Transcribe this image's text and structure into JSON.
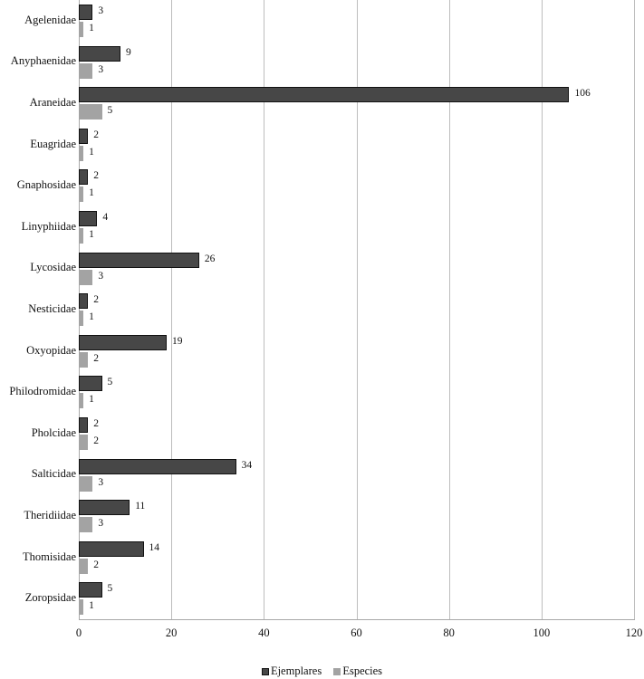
{
  "chart_data": {
    "type": "bar",
    "orientation": "horizontal",
    "title": "",
    "xlabel": "",
    "ylabel": "",
    "xlim": [
      0,
      120
    ],
    "x_ticks": [
      0,
      20,
      40,
      60,
      80,
      100,
      120
    ],
    "grid": "vertical gridlines",
    "legend_position": "bottom",
    "categories": [
      "Agelenidae",
      "Anyphaenidae",
      "Araneidae",
      "Euagridae",
      "Gnaphosidae",
      "Linyphiidae",
      "Lycosidae",
      "Nesticidae",
      "Oxyopidae",
      "Philodromidae",
      "Pholcidae",
      "Salticidae",
      "Theridiidae",
      "Thomisidae",
      "Zoropsidae"
    ],
    "series": [
      {
        "name": "Ejemplares",
        "color": "#474747",
        "values": [
          3,
          9,
          106,
          2,
          2,
          4,
          26,
          2,
          19,
          5,
          2,
          34,
          11,
          14,
          5
        ]
      },
      {
        "name": "Especies",
        "color": "#a3a3a3",
        "values": [
          1,
          3,
          5,
          1,
          1,
          1,
          3,
          1,
          2,
          1,
          2,
          3,
          3,
          2,
          1
        ]
      }
    ]
  },
  "legend": {
    "items": [
      {
        "label": "Ejemplares",
        "color": "#474747"
      },
      {
        "label": "Especies",
        "color": "#a3a3a3"
      }
    ]
  }
}
